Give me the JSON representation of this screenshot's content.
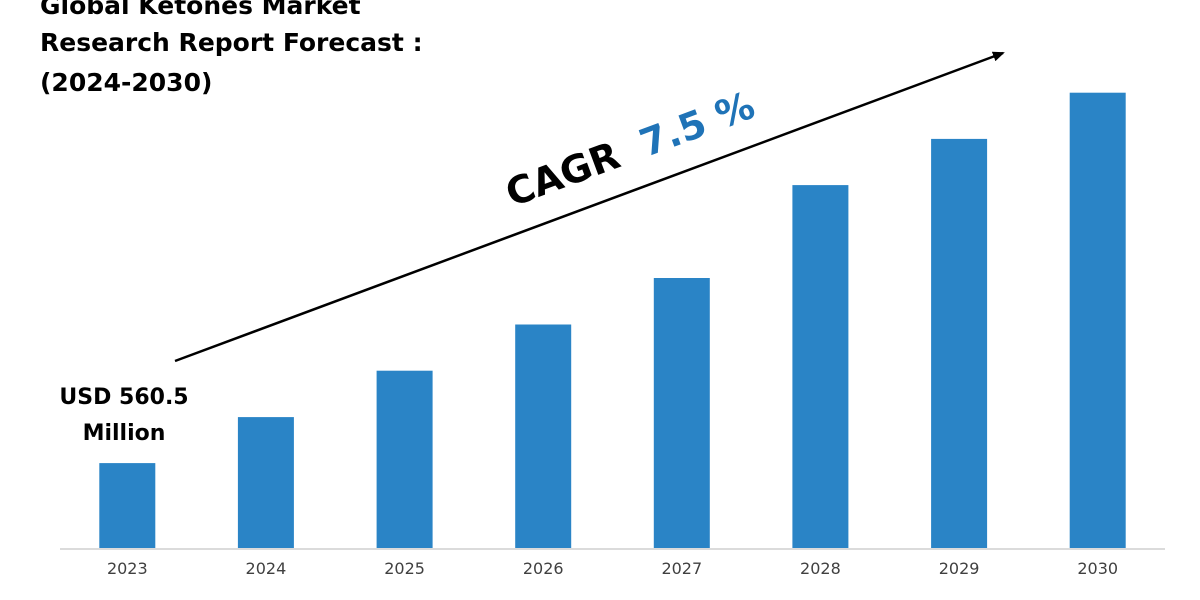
{
  "chart_data": {
    "type": "bar",
    "title_lines": [
      "Global Ketones Market",
      "Research Report Forecast :",
      "(2024-2030)"
    ],
    "categories": [
      "2023",
      "2024",
      "2025",
      "2026",
      "2027",
      "2028",
      "2029",
      "2030"
    ],
    "values": [
      560.5,
      864,
      1170,
      1475,
      1782,
      2395,
      2700,
      3005
    ],
    "ylim": [
      0,
      3300
    ],
    "xlabel": "",
    "ylabel": "",
    "grid": false,
    "bar_color": "#2a84c6",
    "annotation": {
      "value_text": "USD 560.5",
      "unit_text": "Million"
    },
    "cagr": {
      "label": "CAGR",
      "value": "7.5 %",
      "value_color": "#1f73b7"
    }
  }
}
